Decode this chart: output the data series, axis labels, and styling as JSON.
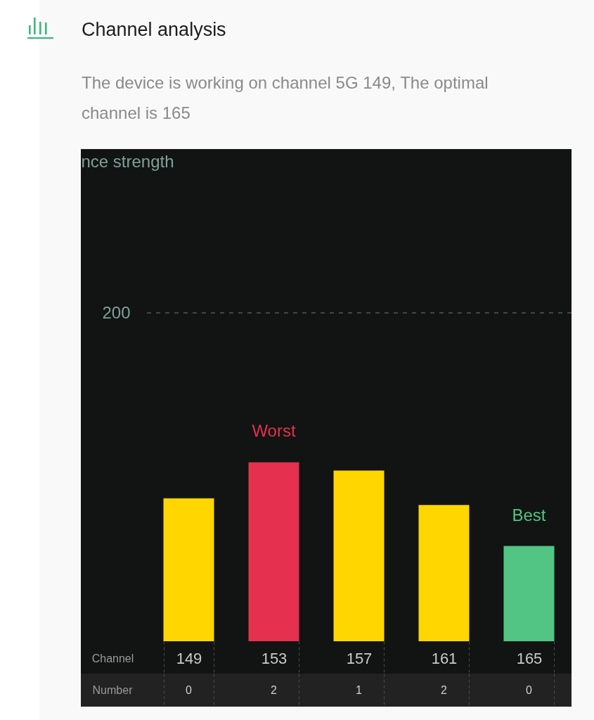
{
  "chart_data": [
    {
      "type": "bar",
      "title": "Channel analysis",
      "subtitle": "The device is working on channel 5G 149, The optimal channel is 165",
      "ylabel": "nce strength",
      "xlabel": "Channel",
      "categories": [
        "149",
        "153",
        "157",
        "161",
        "165"
      ],
      "values": [
        87,
        109,
        104,
        83,
        58
      ],
      "colors": [
        "#ffd600",
        "#e5304f",
        "#ffd600",
        "#ffd600",
        "#52c585"
      ],
      "ylim": [
        0,
        200
      ],
      "yticks": [
        200
      ],
      "ref_lines": [
        {
          "axis": "y",
          "value": 200,
          "color": "#4f5a57",
          "line_style": "dashed"
        }
      ],
      "annotations": [
        {
          "text": "Worst",
          "x": "153",
          "y": 109
        },
        {
          "text": "Best",
          "x": "165",
          "y": 58
        }
      ]
    },
    {
      "type": "other",
      "ylabel": "Number",
      "values": [
        0,
        2,
        1,
        2,
        0
      ],
      "data_labels": true
    }
  ]
}
